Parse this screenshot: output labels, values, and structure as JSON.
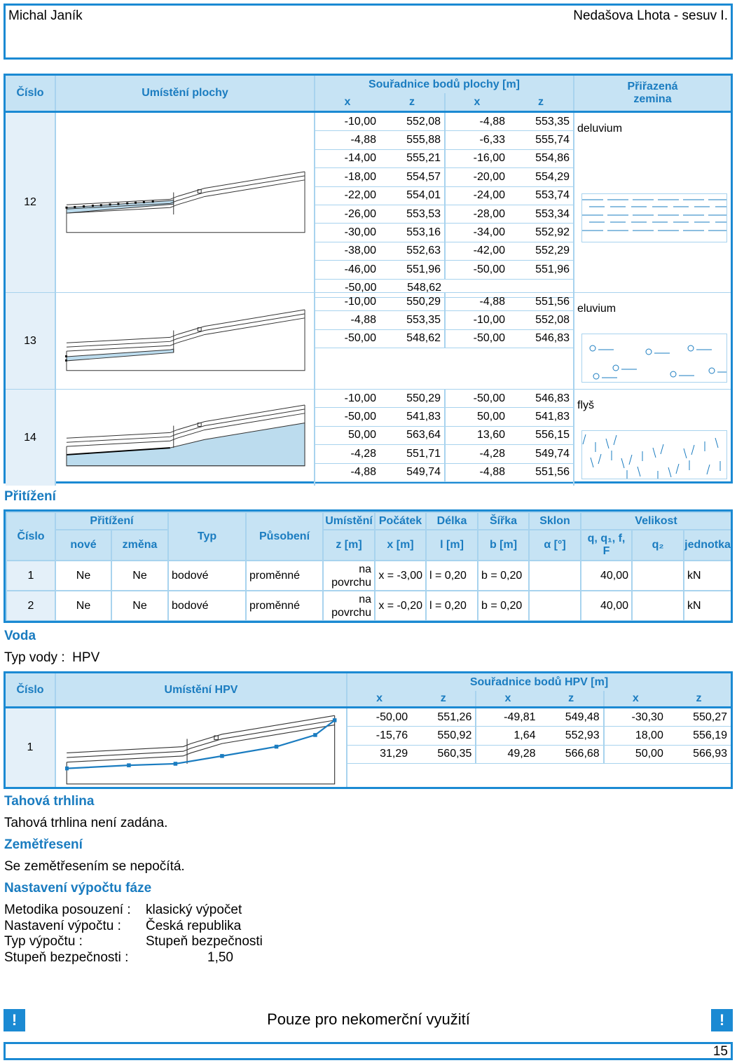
{
  "header": {
    "author": "Michal Janík",
    "project": "Nedašova Lhota - sesuv I."
  },
  "surfaces": {
    "columns": {
      "number": "Číslo",
      "location": "Umístění plochy",
      "coords": "Souřadnice bodů plochy [m]",
      "soil": "Přiřazená\nzemina"
    },
    "coord_headers": [
      "x",
      "z",
      "x",
      "z"
    ],
    "rows": [
      {
        "number": "12",
        "soil": "deluvium",
        "coords": [
          [
            "-10,00",
            "552,08",
            "-4,88",
            "553,35"
          ],
          [
            "-4,88",
            "555,88",
            "-6,33",
            "555,74"
          ],
          [
            "-14,00",
            "555,21",
            "-16,00",
            "554,86"
          ],
          [
            "-18,00",
            "554,57",
            "-20,00",
            "554,29"
          ],
          [
            "-22,00",
            "554,01",
            "-24,00",
            "553,74"
          ],
          [
            "-26,00",
            "553,53",
            "-28,00",
            "553,34"
          ],
          [
            "-30,00",
            "553,16",
            "-34,00",
            "552,92"
          ],
          [
            "-38,00",
            "552,63",
            "-42,00",
            "552,29"
          ],
          [
            "-46,00",
            "551,96",
            "-50,00",
            "551,96"
          ],
          [
            "-50,00",
            "548,62"
          ]
        ]
      },
      {
        "number": "13",
        "soil": "eluvium",
        "coords": [
          [
            "-10,00",
            "550,29",
            "-4,88",
            "551,56"
          ],
          [
            "-4,88",
            "553,35",
            "-10,00",
            "552,08"
          ],
          [
            "-50,00",
            "548,62",
            "-50,00",
            "546,83"
          ]
        ]
      },
      {
        "number": "14",
        "soil": "flyš",
        "coords": [
          [
            "-10,00",
            "550,29",
            "-50,00",
            "546,83"
          ],
          [
            "-50,00",
            "541,83",
            "50,00",
            "541,83"
          ],
          [
            "50,00",
            "563,64",
            "13,60",
            "556,15"
          ],
          [
            "-4,28",
            "551,71",
            "-4,28",
            "549,74"
          ],
          [
            "-4,88",
            "549,74",
            "-4,88",
            "551,56"
          ]
        ]
      }
    ]
  },
  "loads": {
    "title": "Přitížení",
    "headers": {
      "number": "Číslo",
      "load": "Přitížení",
      "new": "nové",
      "change": "změna",
      "type": "Typ",
      "action": "Působení",
      "placement": "Umístění",
      "placement_unit": "z [m]",
      "start": "Počátek",
      "start_unit": "x [m]",
      "length": "Délka",
      "length_unit": "l [m]",
      "width": "Šířka",
      "width_unit": "b [m]",
      "slope": "Sklon",
      "slope_unit": "α [°]",
      "magnitude": "Velikost",
      "q1": "q, q₁, f, F",
      "q2": "q₂",
      "unit": "jednotka"
    },
    "rows": [
      {
        "number": "1",
        "new": "Ne",
        "change": "Ne",
        "type": "bodové",
        "action": "proměnné",
        "placement": "na povrchu",
        "start": "x = -3,00",
        "length": "l = 0,20",
        "width": "b = 0,20",
        "q1": "40,00",
        "unit": "kN"
      },
      {
        "number": "2",
        "new": "Ne",
        "change": "Ne",
        "type": "bodové",
        "action": "proměnné",
        "placement": "na povrchu",
        "start": "x = -0,20",
        "length": "l = 0,20",
        "width": "b = 0,20",
        "q1": "40,00",
        "unit": "kN"
      }
    ]
  },
  "water": {
    "title": "Voda",
    "type_label": "Typ vody :",
    "type_value": "HPV",
    "columns": {
      "number": "Číslo",
      "location": "Umístění HPV",
      "coords": "Souřadnice bodů HPV [m]"
    },
    "coord_headers": [
      "x",
      "z",
      "x",
      "z",
      "x",
      "z"
    ],
    "rows": [
      {
        "number": "1",
        "coords": [
          [
            "-50,00",
            "551,26",
            "-49,81",
            "549,48",
            "-30,30",
            "550,27"
          ],
          [
            "-15,76",
            "550,92",
            "1,64",
            "552,93",
            "18,00",
            "556,19"
          ],
          [
            "31,29",
            "560,35",
            "49,28",
            "566,68",
            "50,00",
            "566,93"
          ]
        ]
      }
    ]
  },
  "crack": {
    "title": "Tahová trhlina",
    "text": "Tahová trhlina není zadána."
  },
  "earthquake": {
    "title": "Zemětřesení",
    "text": "Se zemětřesením se nepočítá."
  },
  "settings": {
    "title": "Nastavení výpočtu fáze",
    "items": [
      [
        "Metodika posouzení :",
        "klasický výpočet"
      ],
      [
        "Nastavení výpočtu :",
        "Česká republika"
      ],
      [
        "Typ výpočtu :",
        "Stupeň bezpečnosti"
      ],
      [
        "Stupeň bezpečnosti :",
        "1,50"
      ]
    ]
  },
  "footer": {
    "mark": "!",
    "text": "Pouze pro nekomerční využití",
    "page": "15"
  }
}
